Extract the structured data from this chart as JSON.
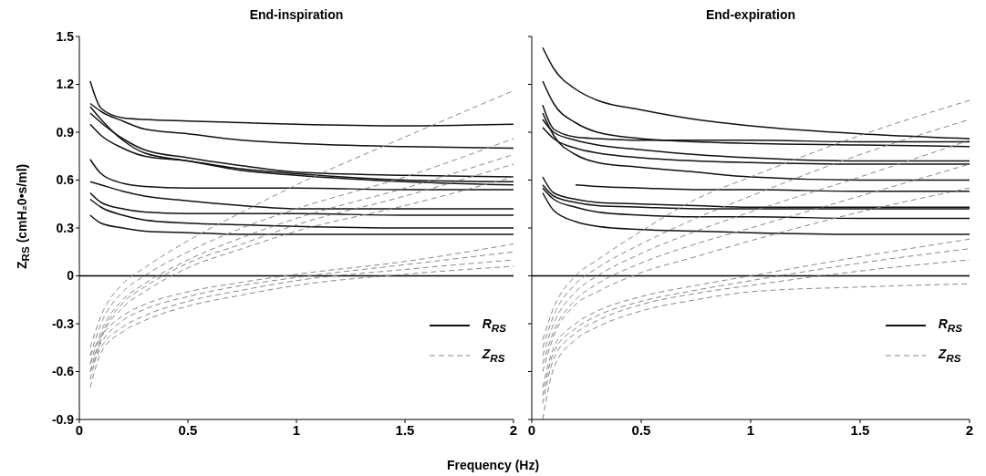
{
  "chart_data": [
    {
      "type": "line",
      "title": "End-inspiration",
      "xlabel": "Frequency (Hz)",
      "ylabel": "Z$_{RS}$ (cmH₂0•s/ml)",
      "xlim": [
        0,
        2
      ],
      "xticks": [
        0,
        0.5,
        1,
        1.5,
        2
      ],
      "ylim": [
        -0.9,
        1.5
      ],
      "yticks": [
        -0.9,
        -0.6,
        -0.3,
        0,
        0.3,
        0.6,
        0.9,
        1.2,
        1.5
      ],
      "legend": "bottom right",
      "x": [
        0.05,
        0.1,
        0.2,
        0.3,
        0.5,
        0.75,
        1,
        1.5,
        2
      ],
      "ref_lines": [
        {
          "axis": "y",
          "value": 0,
          "color": "#000000"
        }
      ],
      "series": [
        {
          "name": "R$_{RS}$",
          "color": "#111111",
          "line_style": "solid",
          "values": [
            1.22,
            1.05,
            0.99,
            0.98,
            0.97,
            0.96,
            0.95,
            0.94,
            0.95
          ]
        },
        {
          "color": "#111111",
          "line_style": "solid",
          "values": [
            1.08,
            1.03,
            0.97,
            0.92,
            0.89,
            0.85,
            0.83,
            0.81,
            0.8
          ]
        },
        {
          "color": "#111111",
          "line_style": "solid",
          "values": [
            1.02,
            0.96,
            0.86,
            0.79,
            0.74,
            0.69,
            0.65,
            0.63,
            0.62
          ]
        },
        {
          "color": "#111111",
          "line_style": "solid",
          "values": [
            0.95,
            0.88,
            0.8,
            0.75,
            0.72,
            0.67,
            0.64,
            0.6,
            0.59
          ]
        },
        {
          "color": "#111111",
          "line_style": "solid",
          "values": [
            1.06,
            0.98,
            0.85,
            0.77,
            0.72,
            0.66,
            0.63,
            0.59,
            0.57
          ]
        },
        {
          "color": "#111111",
          "line_style": "solid",
          "values": [
            0.73,
            0.64,
            0.58,
            0.56,
            0.55,
            0.55,
            0.55,
            0.54,
            0.54
          ]
        },
        {
          "color": "#111111",
          "line_style": "solid",
          "values": [
            0.59,
            0.57,
            0.53,
            0.5,
            0.47,
            0.44,
            0.42,
            0.42,
            0.42
          ]
        },
        {
          "color": "#111111",
          "line_style": "solid",
          "values": [
            0.52,
            0.46,
            0.42,
            0.4,
            0.39,
            0.39,
            0.39,
            0.38,
            0.38
          ]
        },
        {
          "color": "#111111",
          "line_style": "solid",
          "values": [
            0.48,
            0.43,
            0.38,
            0.35,
            0.33,
            0.32,
            0.31,
            0.3,
            0.3
          ]
        },
        {
          "color": "#111111",
          "line_style": "solid",
          "values": [
            0.38,
            0.33,
            0.3,
            0.28,
            0.27,
            0.26,
            0.26,
            0.26,
            0.26
          ]
        },
        {
          "name": "Z$_{RS}$",
          "color": "#888888",
          "line_style": "dashed",
          "values": [
            -0.45,
            -0.25,
            -0.05,
            0.05,
            0.22,
            0.4,
            0.57,
            0.87,
            1.16
          ]
        },
        {
          "color": "#888888",
          "line_style": "dashed",
          "values": [
            -0.5,
            -0.3,
            -0.1,
            0,
            0.15,
            0.3,
            0.42,
            0.62,
            0.86
          ]
        },
        {
          "color": "#888888",
          "line_style": "dashed",
          "values": [
            -0.55,
            -0.35,
            -0.15,
            -0.05,
            0.1,
            0.24,
            0.36,
            0.55,
            0.76
          ]
        },
        {
          "color": "#888888",
          "line_style": "dashed",
          "values": [
            -0.6,
            -0.38,
            -0.17,
            -0.07,
            0.08,
            0.2,
            0.32,
            0.5,
            0.7
          ]
        },
        {
          "color": "#888888",
          "line_style": "dashed",
          "values": [
            -0.65,
            -0.4,
            -0.2,
            -0.1,
            0.05,
            0.17,
            0.28,
            0.44,
            0.62
          ]
        },
        {
          "color": "#888888",
          "line_style": "dashed",
          "values": [
            -0.5,
            -0.38,
            -0.25,
            -0.18,
            -0.1,
            -0.04,
            0.01,
            0.09,
            0.2
          ]
        },
        {
          "color": "#888888",
          "line_style": "dashed",
          "values": [
            -0.55,
            -0.42,
            -0.28,
            -0.21,
            -0.13,
            -0.06,
            -0.01,
            0.07,
            0.15
          ]
        },
        {
          "color": "#888888",
          "line_style": "dashed",
          "values": [
            -0.6,
            -0.45,
            -0.32,
            -0.25,
            -0.16,
            -0.09,
            -0.03,
            0.04,
            0.1
          ]
        },
        {
          "color": "#888888",
          "line_style": "dashed",
          "values": [
            -0.7,
            -0.48,
            -0.35,
            -0.28,
            -0.19,
            -0.12,
            -0.06,
            0.01,
            0.06
          ]
        }
      ]
    },
    {
      "type": "line",
      "title": "End-expiration",
      "xlim": [
        0,
        2
      ],
      "xticks": [
        0,
        0.5,
        1,
        1.5,
        2
      ],
      "ylim": [
        -0.9,
        1.5
      ],
      "yticks": [
        -0.9,
        -0.6,
        -0.3,
        0,
        0.3,
        0.6,
        0.9,
        1.2,
        1.5
      ],
      "tick_labels": "x",
      "legend": "bottom right",
      "x": [
        0.05,
        0.1,
        0.2,
        0.3,
        0.5,
        0.75,
        1,
        1.5,
        2
      ],
      "ref_lines": [
        {
          "axis": "y",
          "value": 0,
          "color": "#000000"
        }
      ],
      "series": [
        {
          "name": "R$_{RS}$",
          "color": "#111111",
          "line_style": "solid",
          "values": [
            1.43,
            1.3,
            1.17,
            1.1,
            1.04,
            0.98,
            0.94,
            0.89,
            0.86
          ]
        },
        {
          "color": "#111111",
          "line_style": "solid",
          "values": [
            1.22,
            1.08,
            0.96,
            0.9,
            0.86,
            0.84,
            0.83,
            0.82,
            0.81
          ]
        },
        {
          "color": "#111111",
          "line_style": "solid",
          "values": [
            1.07,
            0.92,
            0.87,
            0.86,
            0.85,
            0.85,
            0.85,
            0.84,
            0.84
          ]
        },
        {
          "color": "#111111",
          "line_style": "solid",
          "values": [
            0.98,
            0.9,
            0.85,
            0.82,
            0.79,
            0.76,
            0.74,
            0.72,
            0.72
          ]
        },
        {
          "color": "#111111",
          "line_style": "solid",
          "values": [
            0.93,
            0.86,
            0.8,
            0.77,
            0.74,
            0.72,
            0.71,
            0.7,
            0.7
          ]
        },
        {
          "color": "#111111",
          "line_style": "solid",
          "values": [
            1.02,
            0.88,
            0.76,
            0.71,
            0.68,
            0.65,
            0.62,
            0.6,
            0.6
          ]
        },
        {
          "color": "#111111",
          "line_style": "solid",
          "values": [
            null,
            null,
            0.57,
            0.56,
            0.55,
            0.54,
            0.54,
            0.53,
            0.53
          ]
        },
        {
          "color": "#111111",
          "line_style": "solid",
          "values": [
            0.62,
            0.52,
            0.48,
            0.46,
            0.45,
            0.44,
            0.43,
            0.43,
            0.43
          ]
        },
        {
          "color": "#111111",
          "line_style": "solid",
          "values": [
            0.57,
            0.5,
            0.46,
            0.44,
            0.43,
            0.42,
            0.42,
            0.42,
            0.42
          ]
        },
        {
          "color": "#111111",
          "line_style": "solid",
          "values": [
            0.55,
            0.48,
            0.43,
            0.4,
            0.38,
            0.37,
            0.37,
            0.36,
            0.36
          ]
        },
        {
          "color": "#111111",
          "line_style": "solid",
          "values": [
            0.52,
            0.41,
            0.34,
            0.31,
            0.29,
            0.28,
            0.27,
            0.26,
            0.26
          ]
        },
        {
          "name": "Z$_{RS}$",
          "color": "#888888",
          "line_style": "dashed",
          "values": [
            -0.4,
            -0.2,
            0,
            0.1,
            0.28,
            0.48,
            0.62,
            0.88,
            1.1
          ]
        },
        {
          "color": "#888888",
          "line_style": "dashed",
          "values": [
            -0.45,
            -0.25,
            -0.05,
            0.05,
            0.2,
            0.36,
            0.5,
            0.76,
            0.98
          ]
        },
        {
          "color": "#888888",
          "line_style": "dashed",
          "values": [
            -0.5,
            -0.3,
            -0.1,
            0,
            0.14,
            0.28,
            0.4,
            0.62,
            0.85
          ]
        },
        {
          "color": "#888888",
          "line_style": "dashed",
          "values": [
            -0.55,
            -0.35,
            -0.15,
            -0.05,
            0.08,
            0.2,
            0.3,
            0.5,
            0.7
          ]
        },
        {
          "color": "#888888",
          "line_style": "dashed",
          "values": [
            -0.6,
            -0.38,
            -0.18,
            -0.1,
            0.02,
            0.12,
            0.22,
            0.4,
            0.55
          ]
        },
        {
          "color": "#888888",
          "line_style": "dashed",
          "values": [
            -0.7,
            -0.45,
            -0.3,
            -0.22,
            -0.13,
            -0.06,
            0,
            0.12,
            0.23
          ]
        },
        {
          "color": "#888888",
          "line_style": "dashed",
          "values": [
            -0.75,
            -0.48,
            -0.33,
            -0.25,
            -0.16,
            -0.09,
            -0.03,
            0.08,
            0.17
          ]
        },
        {
          "color": "#888888",
          "line_style": "dashed",
          "values": [
            -0.8,
            -0.52,
            -0.36,
            -0.28,
            -0.18,
            -0.11,
            -0.06,
            0.03,
            0.1
          ]
        },
        {
          "color": "#888888",
          "line_style": "dashed",
          "values": [
            -0.9,
            -0.58,
            -0.4,
            -0.32,
            -0.22,
            -0.15,
            -0.1,
            -0.07,
            -0.05
          ]
        }
      ]
    }
  ]
}
